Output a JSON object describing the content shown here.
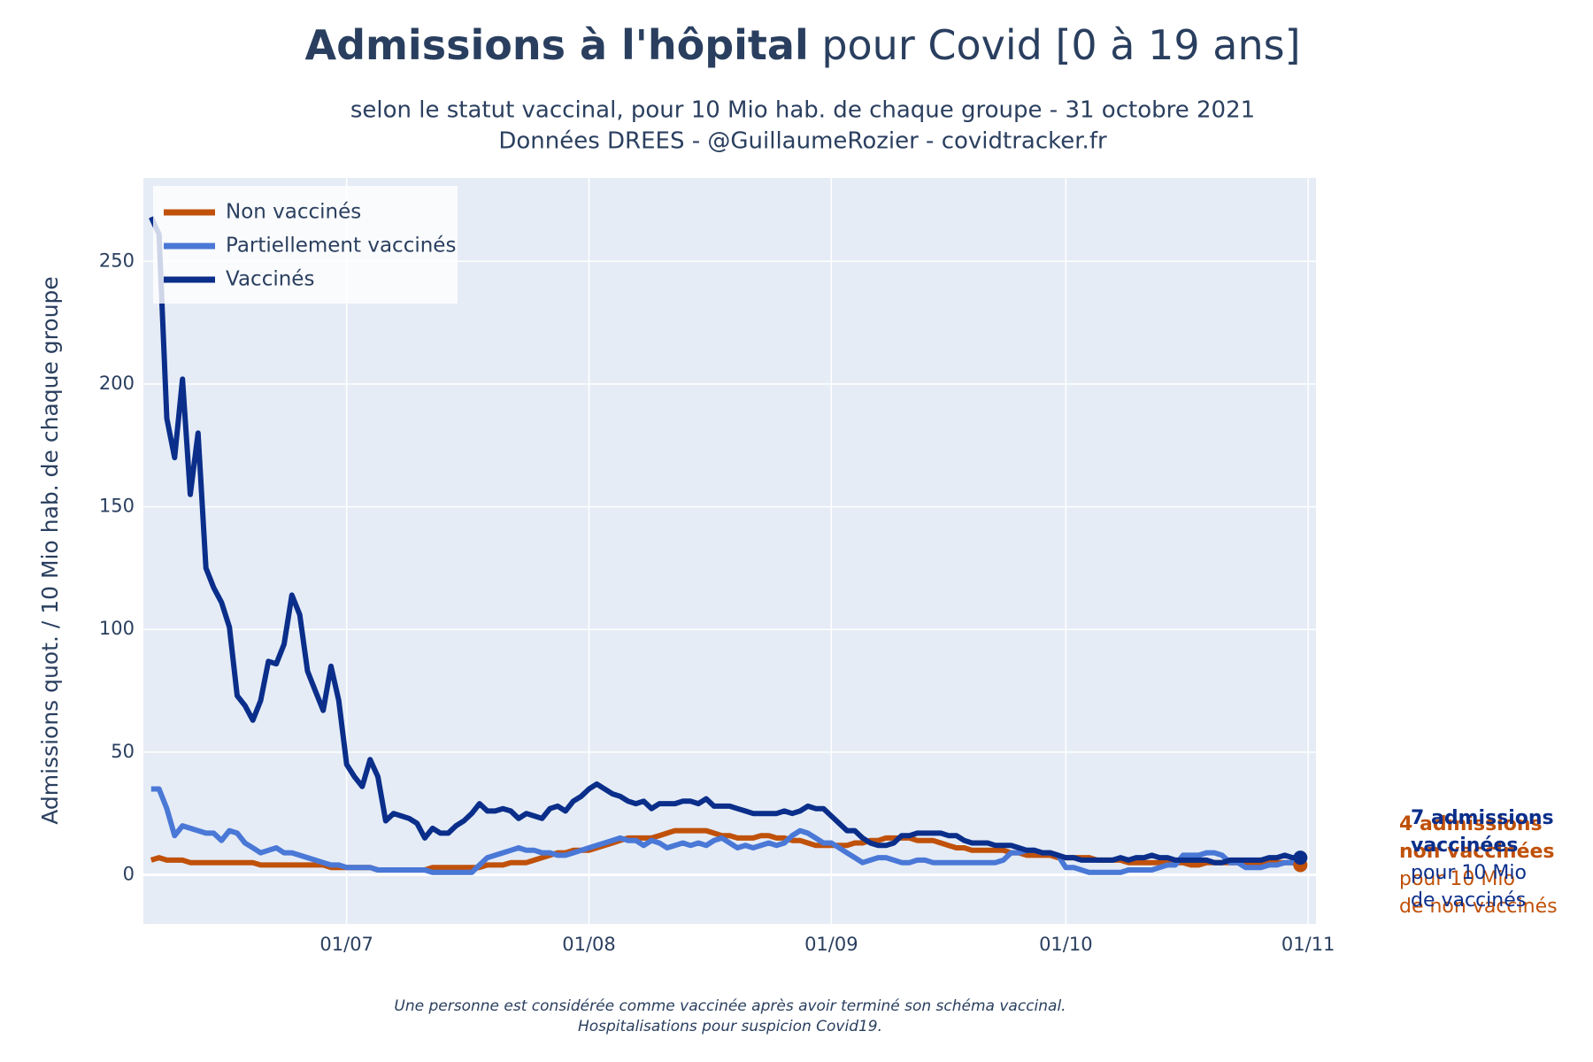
{
  "chart_data": {
    "type": "line",
    "title_bold": "Admissions à l'hôpital",
    "title_rest": "pour Covid [0 à 19 ans]",
    "subtitle": [
      "selon le statut vaccinal, pour 10 Mio hab. de chaque groupe - 31 octobre 2021",
      "Données DREES - @GuillaumeRozier - covidtracker.fr"
    ],
    "ylabel": "Admissions quot. / 10 Mio hab. de chaque groupe",
    "footnote": [
      "Une personne est considérée comme vaccinée après avoir terminé son schéma vaccinal.",
      "Hospitalisations pour suspicion Covid19."
    ],
    "x": [
      "06/06",
      "07/06",
      "08/06",
      "09/06",
      "10/06",
      "11/06",
      "12/06",
      "13/06",
      "14/06",
      "15/06",
      "16/06",
      "17/06",
      "18/06",
      "19/06",
      "20/06",
      "21/06",
      "22/06",
      "23/06",
      "24/06",
      "25/06",
      "26/06",
      "27/06",
      "28/06",
      "29/06",
      "30/06",
      "01/07",
      "02/07",
      "03/07",
      "04/07",
      "05/07",
      "06/07",
      "07/07",
      "08/07",
      "09/07",
      "10/07",
      "11/07",
      "12/07",
      "13/07",
      "14/07",
      "15/07",
      "16/07",
      "17/07",
      "18/07",
      "19/07",
      "20/07",
      "21/07",
      "22/07",
      "23/07",
      "24/07",
      "25/07",
      "26/07",
      "27/07",
      "28/07",
      "29/07",
      "30/07",
      "31/07",
      "01/08",
      "02/08",
      "03/08",
      "04/08",
      "05/08",
      "06/08",
      "07/08",
      "08/08",
      "09/08",
      "10/08",
      "11/08",
      "12/08",
      "13/08",
      "14/08",
      "15/08",
      "16/08",
      "17/08",
      "18/08",
      "19/08",
      "20/08",
      "21/08",
      "22/08",
      "23/08",
      "24/08",
      "25/08",
      "26/08",
      "27/08",
      "28/08",
      "29/08",
      "30/08",
      "31/08",
      "01/09",
      "02/09",
      "03/09",
      "04/09",
      "05/09",
      "06/09",
      "07/09",
      "08/09",
      "09/09",
      "10/09",
      "11/09",
      "12/09",
      "13/09",
      "14/09",
      "15/09",
      "16/09",
      "17/09",
      "18/09",
      "19/09",
      "20/09",
      "21/09",
      "22/09",
      "23/09",
      "24/09",
      "25/09",
      "26/09",
      "27/09",
      "28/09",
      "29/09",
      "30/09",
      "01/10",
      "02/10",
      "03/10",
      "04/10",
      "05/10",
      "06/10",
      "07/10",
      "08/10",
      "09/10",
      "10/10",
      "11/10",
      "12/10",
      "13/10",
      "14/10",
      "15/10",
      "16/10",
      "17/10",
      "18/10",
      "19/10",
      "20/10",
      "21/10",
      "22/10",
      "23/10",
      "24/10",
      "25/10",
      "26/10",
      "27/10",
      "28/10",
      "29/10",
      "30/10",
      "31/10"
    ],
    "series": [
      {
        "name": "Non vaccinés",
        "color": "#c0510a",
        "end_marker": true,
        "values": [
          6,
          7,
          6,
          6,
          6,
          5,
          5,
          5,
          5,
          5,
          5,
          5,
          5,
          5,
          4,
          4,
          4,
          4,
          4,
          4,
          4,
          4,
          4,
          3,
          3,
          3,
          3,
          3,
          3,
          2,
          2,
          2,
          2,
          2,
          2,
          2,
          3,
          3,
          3,
          3,
          3,
          3,
          3,
          4,
          4,
          4,
          5,
          5,
          5,
          6,
          7,
          8,
          9,
          9,
          10,
          10,
          10,
          11,
          12,
          13,
          14,
          15,
          15,
          15,
          15,
          16,
          17,
          18,
          18,
          18,
          18,
          18,
          17,
          16,
          16,
          15,
          15,
          15,
          16,
          16,
          15,
          15,
          14,
          14,
          13,
          12,
          12,
          12,
          12,
          12,
          13,
          13,
          14,
          14,
          15,
          15,
          15,
          15,
          14,
          14,
          14,
          13,
          12,
          11,
          11,
          10,
          10,
          10,
          10,
          10,
          9,
          9,
          8,
          8,
          8,
          8,
          7,
          7,
          7,
          7,
          7,
          6,
          6,
          6,
          6,
          5,
          5,
          5,
          5,
          5,
          5,
          5,
          5,
          4,
          4,
          5,
          5,
          5,
          5,
          5,
          5,
          5,
          5,
          5,
          5,
          5,
          5,
          4
        ]
      },
      {
        "name": "Partiellement vaccinés",
        "color": "#4a78d6",
        "end_marker": false,
        "values": [
          35,
          35,
          27,
          16,
          20,
          19,
          18,
          17,
          17,
          14,
          18,
          17,
          13,
          11,
          9,
          10,
          11,
          9,
          9,
          8,
          7,
          6,
          5,
          4,
          4,
          3,
          3,
          3,
          3,
          2,
          2,
          2,
          2,
          2,
          2,
          2,
          1,
          1,
          1,
          1,
          1,
          1,
          4,
          7,
          8,
          9,
          10,
          11,
          10,
          10,
          9,
          9,
          8,
          8,
          9,
          10,
          11,
          12,
          13,
          14,
          15,
          14,
          14,
          12,
          14,
          13,
          11,
          12,
          13,
          12,
          13,
          12,
          14,
          15,
          13,
          11,
          12,
          11,
          12,
          13,
          12,
          13,
          16,
          18,
          17,
          15,
          13,
          13,
          11,
          9,
          7,
          5,
          6,
          7,
          7,
          6,
          5,
          5,
          6,
          6,
          5,
          5,
          5,
          5,
          5,
          5,
          5,
          5,
          5,
          6,
          9,
          9,
          10,
          10,
          9,
          9,
          8,
          3,
          3,
          2,
          1,
          1,
          1,
          1,
          1,
          2,
          2,
          2,
          2,
          3,
          4,
          4,
          8,
          8,
          8,
          9,
          9,
          8,
          5,
          5,
          3,
          3,
          3,
          4,
          4,
          5,
          5,
          5
        ]
      },
      {
        "name": "Vaccinés",
        "color": "#0a2e8a",
        "end_marker": true,
        "values": [
          268,
          261,
          186,
          170,
          202,
          155,
          180,
          125,
          117,
          111,
          101,
          73,
          69,
          63,
          71,
          87,
          86,
          94,
          114,
          106,
          83,
          75,
          67,
          85,
          71,
          45,
          40,
          36,
          47,
          40,
          22,
          25,
          24,
          23,
          21,
          15,
          19,
          17,
          17,
          20,
          22,
          25,
          29,
          26,
          26,
          27,
          26,
          23,
          25,
          24,
          23,
          27,
          28,
          26,
          30,
          32,
          35,
          37,
          35,
          33,
          32,
          30,
          29,
          30,
          27,
          29,
          29,
          29,
          30,
          30,
          29,
          31,
          28,
          28,
          28,
          27,
          26,
          25,
          25,
          25,
          25,
          26,
          25,
          26,
          28,
          27,
          27,
          24,
          21,
          18,
          18,
          15,
          13,
          12,
          12,
          13,
          16,
          16,
          17,
          17,
          17,
          17,
          16,
          16,
          14,
          13,
          13,
          13,
          12,
          12,
          12,
          11,
          10,
          10,
          9,
          9,
          8,
          7,
          7,
          6,
          6,
          6,
          6,
          6,
          7,
          6,
          7,
          7,
          8,
          7,
          7,
          6,
          6,
          6,
          6,
          6,
          5,
          5,
          6,
          6,
          6,
          6,
          6,
          7,
          7,
          8,
          7,
          7
        ]
      }
    ],
    "xlim": [
      "05/06",
      "02/11"
    ],
    "xticks": [
      "01/07",
      "01/08",
      "01/09",
      "01/10",
      "01/11"
    ],
    "ylim": [
      -20,
      284
    ],
    "yticks": [
      0,
      50,
      100,
      150,
      200,
      250
    ],
    "grid": true,
    "legend": "top-left",
    "annotations": [
      {
        "color": "#c0510a",
        "bold": [
          "4 admissions",
          "non vaccinées"
        ],
        "text": [
          "pour 10 Mio",
          "de non vaccinés"
        ]
      },
      {
        "color": "#0a2e8a",
        "bold": [
          "7 admissions",
          "vaccinées"
        ],
        "text": [
          "pour 10 Mio",
          "de vaccinés"
        ]
      }
    ]
  }
}
